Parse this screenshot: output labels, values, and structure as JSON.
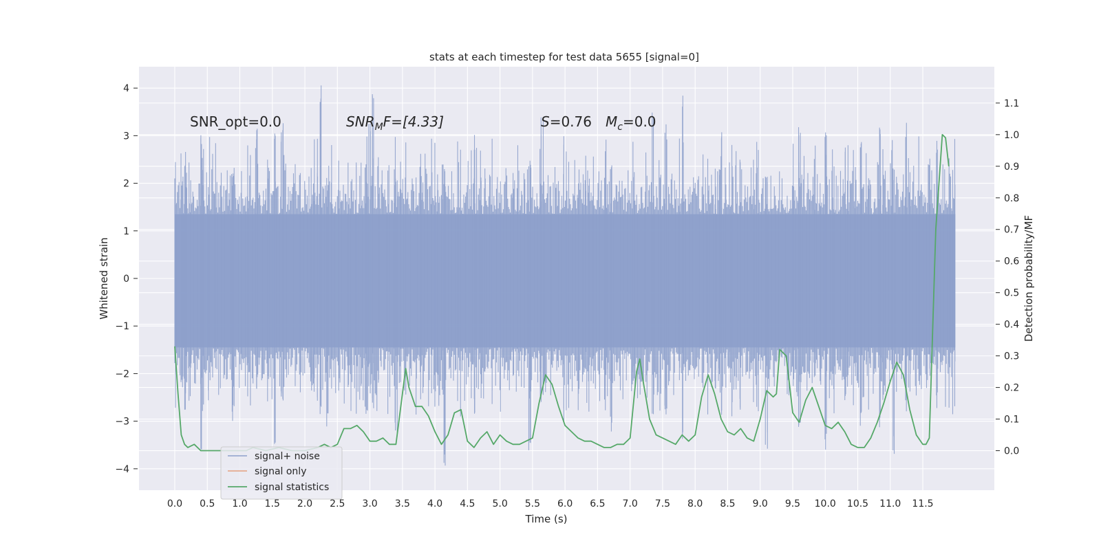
{
  "chart_data": {
    "type": "line",
    "title": "stats at each timestep for test data 5655 [signal=0]",
    "xlabel": "Time (s)",
    "ylabel": "Whitened strain",
    "y2label": "Detection probability/MF",
    "xlim": [
      -0.55,
      12.6
    ],
    "ylim": [
      -4.45,
      4.45
    ],
    "y2lim": [
      -0.125,
      1.215
    ],
    "x_ticks": [
      "0.0",
      "0.5",
      "1.0",
      "1.5",
      "2.0",
      "2.5",
      "3.0",
      "3.5",
      "4.0",
      "4.5",
      "5.0",
      "5.5",
      "6.0",
      "6.5",
      "7.0",
      "7.5",
      "8.0",
      "8.5",
      "9.0",
      "9.5",
      "10.0",
      "10.5",
      "11.0",
      "11.5"
    ],
    "y_ticks": [
      "4",
      "3",
      "2",
      "1",
      "0",
      "−1",
      "−2",
      "−3",
      "−4"
    ],
    "y2_ticks": [
      "1.1",
      "1.0",
      "0.9",
      "0.8",
      "0.7",
      "0.6",
      "0.5",
      "0.4",
      "0.3",
      "0.2",
      "0.1",
      "0.0"
    ],
    "grid": true,
    "legend_position": "lower-left",
    "annotations": {
      "snr_opt": "SNR_opt=0.0",
      "snr_mf_prefix": "SNR",
      "snr_mf_sub": "M",
      "snr_mf_suffix": "F=[4.33]",
      "s_italic": "S",
      "s_value": "=0.76",
      "mc_italic": "M",
      "mc_sub": "c",
      "mc_value": "=0.0"
    },
    "series": [
      {
        "name": "signal+ noise",
        "color": "#8da0cb",
        "axis": "left",
        "envelope": {
          "x_range": [
            0.0,
            12.0
          ],
          "typical_range": [
            -1.8,
            1.9
          ],
          "max": 4.1,
          "min": -4.05,
          "seed": 5655,
          "spikes": [
            [
              0.15,
              2.6,
              -2.8
            ],
            [
              0.4,
              3.1,
              -3.75
            ],
            [
              0.9,
              2.3,
              -3.0
            ],
            [
              1.25,
              3.2,
              -2.4
            ],
            [
              1.55,
              3.1,
              -3.5
            ],
            [
              1.65,
              3.3,
              -2.7
            ],
            [
              2.25,
              4.1,
              -2.9
            ],
            [
              2.35,
              2.2,
              -3.2
            ],
            [
              3.0,
              3.3,
              -2.5
            ],
            [
              3.05,
              3.9,
              -2.8
            ],
            [
              3.4,
              2.1,
              -3.3
            ],
            [
              4.15,
              2.3,
              -4.05
            ],
            [
              4.6,
              3.1,
              -2.9
            ],
            [
              5.45,
              2.6,
              -3.75
            ],
            [
              5.65,
              3.4,
              -2.7
            ],
            [
              6.0,
              3.0,
              -3.1
            ],
            [
              6.7,
              2.5,
              -3.3
            ],
            [
              7.35,
              3.5,
              -2.9
            ],
            [
              7.55,
              3.3,
              -3.0
            ],
            [
              7.8,
              3.85,
              -3.4
            ],
            [
              8.4,
              3.2,
              -3.1
            ],
            [
              8.7,
              2.7,
              -2.8
            ],
            [
              9.1,
              2.4,
              -3.6
            ],
            [
              9.6,
              3.3,
              -3.4
            ],
            [
              10.0,
              3.2,
              -3.6
            ],
            [
              10.55,
              2.9,
              -3.1
            ],
            [
              10.85,
              3.2,
              -3.2
            ],
            [
              11.05,
              2.4,
              -3.7
            ],
            [
              11.25,
              3.3,
              -2.9
            ],
            [
              11.7,
              2.9,
              -2.8
            ]
          ]
        }
      },
      {
        "name": "signal only",
        "color": "#e5a07e",
        "axis": "left",
        "x": [],
        "y": []
      },
      {
        "name": "signal statistics",
        "color": "#55a868",
        "axis": "right",
        "x": [
          0.0,
          0.05,
          0.1,
          0.15,
          0.2,
          0.3,
          0.4,
          0.5,
          0.6,
          0.8,
          1.0,
          1.1,
          1.2,
          1.4,
          1.6,
          1.8,
          2.0,
          2.2,
          2.3,
          2.4,
          2.5,
          2.6,
          2.7,
          2.8,
          2.9,
          3.0,
          3.1,
          3.2,
          3.3,
          3.4,
          3.5,
          3.55,
          3.6,
          3.7,
          3.8,
          3.9,
          4.0,
          4.1,
          4.2,
          4.3,
          4.4,
          4.5,
          4.6,
          4.7,
          4.8,
          4.9,
          5.0,
          5.1,
          5.2,
          5.3,
          5.4,
          5.5,
          5.6,
          5.7,
          5.8,
          5.9,
          6.0,
          6.1,
          6.2,
          6.3,
          6.4,
          6.5,
          6.6,
          6.7,
          6.8,
          6.9,
          7.0,
          7.1,
          7.15,
          7.2,
          7.3,
          7.4,
          7.5,
          7.6,
          7.7,
          7.8,
          7.9,
          8.0,
          8.1,
          8.2,
          8.3,
          8.4,
          8.5,
          8.6,
          8.7,
          8.8,
          8.9,
          9.0,
          9.1,
          9.2,
          9.25,
          9.3,
          9.4,
          9.5,
          9.6,
          9.7,
          9.8,
          9.9,
          10.0,
          10.1,
          10.2,
          10.3,
          10.4,
          10.5,
          10.6,
          10.7,
          10.8,
          10.9,
          11.0,
          11.1,
          11.2,
          11.3,
          11.4,
          11.5,
          11.55,
          11.6,
          11.7,
          11.8,
          11.85,
          11.9
        ],
        "y": [
          0.33,
          0.18,
          0.05,
          0.02,
          0.01,
          0.02,
          0.0,
          0.0,
          0.0,
          0.0,
          0.0,
          0.0,
          0.01,
          0.0,
          0.01,
          0.0,
          0.0,
          0.01,
          0.02,
          0.01,
          0.02,
          0.07,
          0.07,
          0.08,
          0.06,
          0.03,
          0.03,
          0.04,
          0.02,
          0.02,
          0.18,
          0.26,
          0.2,
          0.14,
          0.14,
          0.11,
          0.06,
          0.02,
          0.05,
          0.12,
          0.13,
          0.03,
          0.01,
          0.04,
          0.06,
          0.02,
          0.05,
          0.03,
          0.02,
          0.02,
          0.03,
          0.04,
          0.15,
          0.24,
          0.21,
          0.14,
          0.08,
          0.06,
          0.04,
          0.03,
          0.03,
          0.02,
          0.01,
          0.01,
          0.02,
          0.02,
          0.04,
          0.25,
          0.29,
          0.22,
          0.1,
          0.05,
          0.04,
          0.03,
          0.02,
          0.05,
          0.03,
          0.05,
          0.17,
          0.24,
          0.18,
          0.1,
          0.06,
          0.05,
          0.07,
          0.04,
          0.03,
          0.1,
          0.19,
          0.17,
          0.18,
          0.32,
          0.3,
          0.12,
          0.09,
          0.16,
          0.2,
          0.14,
          0.08,
          0.07,
          0.09,
          0.06,
          0.02,
          0.01,
          0.01,
          0.04,
          0.09,
          0.15,
          0.22,
          0.28,
          0.24,
          0.13,
          0.05,
          0.02,
          0.02,
          0.04,
          0.7,
          1.0,
          0.99,
          0.9
        ]
      }
    ]
  }
}
